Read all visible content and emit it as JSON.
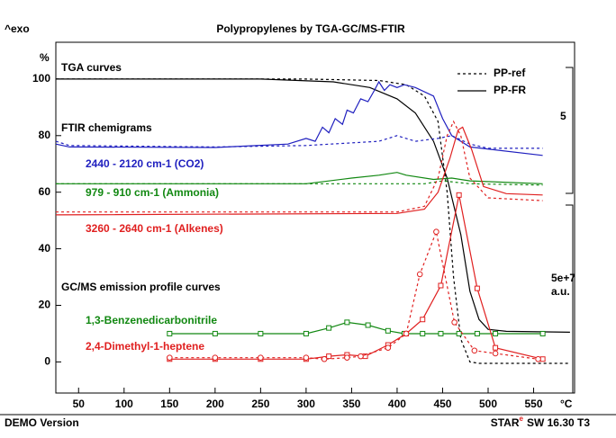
{
  "chart_data": {
    "type": "line",
    "title": "Polypropylenes by TGA-GC/MS-FTIR",
    "corner_label": "^exo",
    "y_unit": "%",
    "x_unit": "°C",
    "xlim": [
      25,
      595
    ],
    "xticks": [
      50,
      100,
      150,
      200,
      250,
      300,
      350,
      400,
      450,
      500,
      550
    ],
    "ylim": [
      -11,
      113
    ],
    "yticks": [
      0,
      20,
      40,
      60,
      80,
      100
    ],
    "legend_position": "upper right",
    "legend": [
      {
        "label": "PP-ref",
        "style": "dotted"
      },
      {
        "label": "PP-FR",
        "style": "solid"
      }
    ],
    "headings": [
      "TGA curves",
      "FTIR chemigrams",
      "GC/MS emission profile curves"
    ],
    "annotations": [
      {
        "text": "2440 - 2120 cm-1 (CO2)",
        "color": "#1f1fbf"
      },
      {
        "text": "979 - 910 cm-1 (Ammonia)",
        "color": "#118811"
      },
      {
        "text": "3260 - 2640 cm-1 (Alkenes)",
        "color": "#e02020"
      },
      {
        "text": "1,3-Benzenedicarbonitrile",
        "color": "#118811"
      },
      {
        "text": "2,4-Dimethyl-1-heptene",
        "color": "#e02020"
      }
    ],
    "scale_labels": [
      "5",
      "5e+7",
      "a.u."
    ],
    "footer_left": "DEMO Version",
    "footer_right": [
      "STAR",
      "e",
      "SW 16.30 T3"
    ],
    "series": [
      {
        "color": "#000000",
        "style": "dotted",
        "x": [
          25,
          300,
          380,
          410,
          430,
          445,
          455,
          462,
          470,
          480,
          490,
          590
        ],
        "values": [
          100,
          100,
          99.5,
          98,
          94,
          85,
          60,
          30,
          8,
          0,
          -0.5,
          -0.5
        ]
      },
      {
        "color": "#000000",
        "style": "solid",
        "x": [
          25,
          250,
          330,
          370,
          400,
          420,
          440,
          455,
          470,
          480,
          490,
          500,
          520,
          590
        ],
        "values": [
          100,
          100,
          99,
          97,
          93,
          88,
          78,
          65,
          45,
          25,
          15,
          11.5,
          10.8,
          10.5
        ]
      },
      {
        "color": "#1f1fbf",
        "style": "dotted",
        "x": [
          25,
          40,
          200,
          300,
          380,
          400,
          420,
          445,
          460,
          480,
          500,
          560
        ],
        "values": [
          78,
          76.5,
          76,
          76.5,
          78,
          80,
          78,
          79,
          80,
          77,
          75.5,
          75.5
        ]
      },
      {
        "color": "#1f1fbf",
        "style": "solid",
        "x": [
          25,
          40,
          200,
          280,
          300,
          310,
          318,
          325,
          332,
          340,
          345,
          352,
          360,
          368,
          375,
          380,
          386,
          392,
          400,
          408,
          420,
          440,
          450,
          460,
          480,
          560
        ],
        "values": [
          77,
          76,
          75.8,
          77,
          79,
          78,
          83,
          81,
          86,
          84,
          89,
          88,
          93,
          92,
          96,
          99,
          96,
          98,
          97,
          98,
          97,
          94,
          86,
          80,
          76,
          73
        ]
      },
      {
        "color": "#118811",
        "style": "dotted",
        "x": [
          25,
          430,
          450,
          480,
          560
        ],
        "values": [
          63,
          63,
          64,
          63,
          62.5
        ]
      },
      {
        "color": "#118811",
        "style": "solid",
        "x": [
          25,
          300,
          350,
          380,
          400,
          410,
          440,
          460,
          480,
          560
        ],
        "values": [
          63,
          63,
          65,
          66,
          67,
          66,
          64.5,
          65,
          64,
          63
        ]
      },
      {
        "color": "#e02020",
        "style": "dotted",
        "x": [
          25,
          400,
          430,
          445,
          455,
          462,
          470,
          480,
          500,
          560
        ],
        "values": [
          53,
          53,
          55,
          65,
          80,
          85,
          80,
          65,
          58,
          57
        ]
      },
      {
        "color": "#e02020",
        "style": "solid",
        "x": [
          25,
          400,
          430,
          445,
          458,
          467,
          472,
          482,
          495,
          520,
          560
        ],
        "values": [
          52,
          52.5,
          54,
          60,
          72,
          82,
          83,
          75,
          62,
          59.5,
          59
        ]
      },
      {
        "color": "#118811",
        "style": "solid",
        "marker": "square",
        "x": [
          150,
          200,
          250,
          300,
          325,
          345,
          368,
          390,
          408,
          428,
          448,
          468,
          488,
          508,
          560
        ],
        "values": [
          10,
          10,
          10,
          10,
          12,
          14,
          13,
          11,
          10,
          10,
          10,
          10,
          10,
          10,
          10
        ]
      },
      {
        "color": "#e02020",
        "style": "solid",
        "marker": "square",
        "x": [
          150,
          200,
          250,
          300,
          325,
          345,
          365,
          390,
          410,
          428,
          448,
          468,
          488,
          508,
          560
        ],
        "values": [
          1,
          1,
          1,
          1,
          2,
          2.5,
          2,
          6,
          10,
          15,
          27,
          59,
          26,
          5,
          1
        ]
      },
      {
        "color": "#e02020",
        "style": "dotted",
        "marker": "circle",
        "x": [
          150,
          200,
          250,
          300,
          320,
          345,
          360,
          390,
          410,
          425,
          443,
          463,
          485,
          508,
          555
        ],
        "values": [
          1.5,
          1.5,
          1.5,
          1.5,
          1,
          1.5,
          2,
          5,
          10,
          31,
          46,
          14,
          4,
          3,
          1
        ]
      }
    ]
  }
}
